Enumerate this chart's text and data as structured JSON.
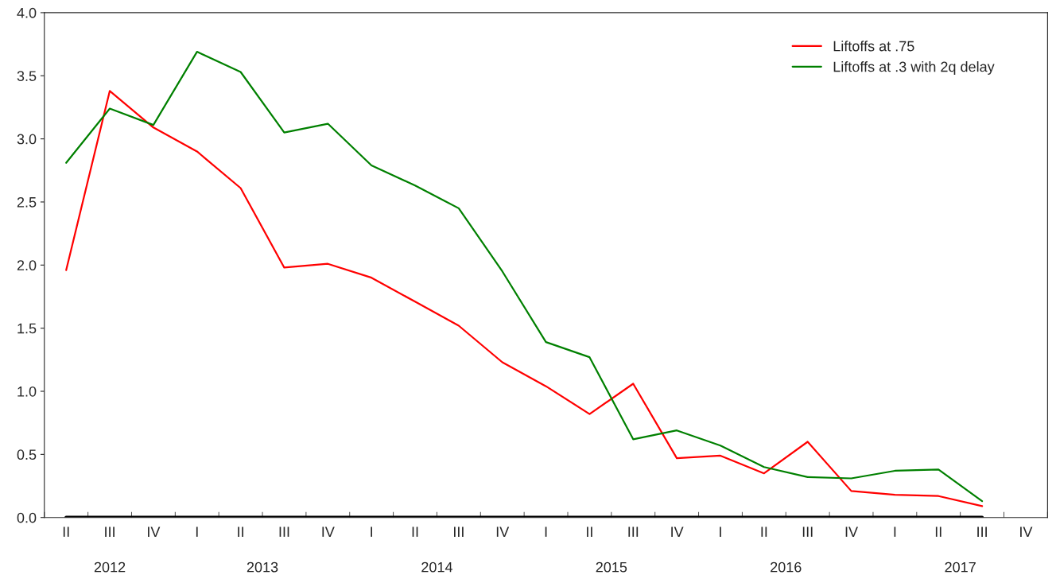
{
  "chart_data": {
    "type": "line",
    "categories": [
      "II",
      "III",
      "IV",
      "I",
      "II",
      "III",
      "IV",
      "I",
      "II",
      "III",
      "IV",
      "I",
      "II",
      "III",
      "IV",
      "I",
      "II",
      "III",
      "IV",
      "I",
      "II",
      "III",
      "IV"
    ],
    "annotations": [
      "2012",
      "2013",
      "2014",
      "2015",
      "2016",
      "2017"
    ],
    "series": [
      {
        "name": "Liftoffs at .75",
        "color": "#ff0000",
        "values": [
          1.96,
          3.38,
          3.09,
          2.9,
          2.61,
          1.98,
          2.01,
          1.9,
          1.71,
          1.52,
          1.23,
          1.04,
          0.82,
          1.06,
          0.47,
          0.49,
          0.35,
          0.6,
          0.21,
          0.18,
          0.17,
          0.09,
          null
        ]
      },
      {
        "name": "Liftoffs at .3 with 2q delay",
        "color": "#008000",
        "values": [
          2.81,
          3.24,
          3.11,
          3.69,
          3.53,
          3.05,
          3.12,
          2.79,
          2.63,
          2.45,
          1.95,
          1.39,
          1.27,
          0.62,
          0.69,
          0.57,
          0.4,
          0.32,
          0.31,
          0.37,
          0.38,
          0.13,
          null
        ]
      },
      {
        "color": "#000000",
        "values": [
          0,
          0,
          0,
          0,
          0,
          0,
          0,
          0,
          0,
          0,
          0,
          0,
          0,
          0,
          0,
          0,
          0,
          0,
          0,
          0,
          0,
          0,
          null
        ]
      }
    ],
    "ylim": [
      0,
      4
    ],
    "yticks": [
      {
        "value": 0,
        "label": "0.0"
      },
      {
        "value": 0.5,
        "label": "0.5"
      },
      {
        "value": 1,
        "label": "1.0"
      },
      {
        "value": 1.5,
        "label": "1.5"
      },
      {
        "value": 2,
        "label": "2.0"
      },
      {
        "value": 2.5,
        "label": "2.5"
      },
      {
        "value": 3,
        "label": "3.0"
      },
      {
        "value": 3.5,
        "label": "3.5"
      },
      {
        "value": 4,
        "label": "4.0"
      }
    ],
    "grid": false,
    "legend": "top right"
  }
}
